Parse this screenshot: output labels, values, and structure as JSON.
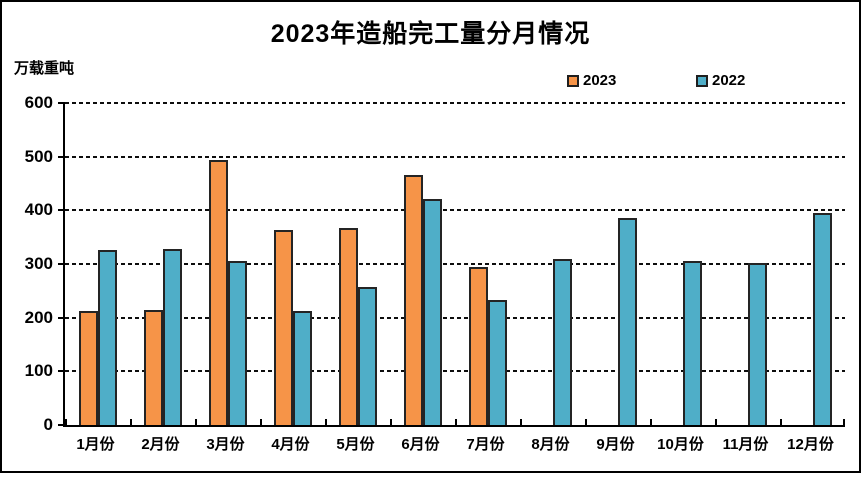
{
  "page": {
    "title": "2023年造船完工量分月情况",
    "y_axis_unit": "万载重吨"
  },
  "legend": {
    "position": "top-right",
    "items": [
      {
        "label": "2023",
        "color": "#F69448"
      },
      {
        "label": "2022",
        "color": "#4FAEC8"
      }
    ]
  },
  "chart_data": {
    "type": "bar",
    "title": "2023年造船完工量分月情况",
    "ylabel": "万载重吨",
    "xlabel": "",
    "categories": [
      "1月份",
      "2月份",
      "3月份",
      "4月份",
      "5月份",
      "6月份",
      "7月份",
      "8月份",
      "9月份",
      "10月份",
      "11月份",
      "12月份"
    ],
    "series": [
      {
        "name": "2023",
        "color": "#F69448",
        "values": [
          212,
          214,
          493,
          364,
          367,
          466,
          294,
          null,
          null,
          null,
          null,
          null
        ]
      },
      {
        "name": "2022",
        "color": "#4FAEC8",
        "values": [
          326,
          328,
          306,
          212,
          257,
          421,
          233,
          309,
          385,
          306,
          302,
          395
        ]
      }
    ],
    "ylim": [
      0,
      600
    ],
    "yticks": [
      0,
      100,
      200,
      300,
      400,
      500,
      600
    ],
    "grid": "horizontal-dashed",
    "legend_position": "top-right",
    "bar_border_color": "#242424",
    "axis_color": "#000000"
  }
}
